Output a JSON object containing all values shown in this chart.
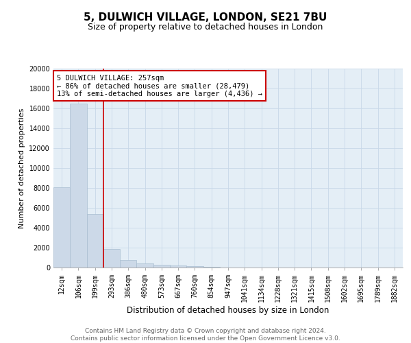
{
  "title": "5, DULWICH VILLAGE, LONDON, SE21 7BU",
  "subtitle": "Size of property relative to detached houses in London",
  "xlabel": "Distribution of detached houses by size in London",
  "ylabel": "Number of detached properties",
  "categories": [
    "12sqm",
    "106sqm",
    "199sqm",
    "293sqm",
    "386sqm",
    "480sqm",
    "573sqm",
    "667sqm",
    "760sqm",
    "854sqm",
    "947sqm",
    "1041sqm",
    "1134sqm",
    "1228sqm",
    "1321sqm",
    "1415sqm",
    "1508sqm",
    "1602sqm",
    "1695sqm",
    "1789sqm",
    "1882sqm"
  ],
  "values": [
    8100,
    16500,
    5400,
    1850,
    750,
    380,
    250,
    200,
    130,
    80,
    0,
    0,
    0,
    0,
    0,
    0,
    0,
    0,
    0,
    0,
    0
  ],
  "bar_color": "#ccd9e8",
  "bar_edge_color": "#a8bdd1",
  "vline_x": 2.5,
  "vline_color": "#cc0000",
  "annotation_text": "5 DULWICH VILLAGE: 257sqm\n← 86% of detached houses are smaller (28,479)\n13% of semi-detached houses are larger (4,436) →",
  "annotation_box_color": "#cc0000",
  "ylim": [
    0,
    20000
  ],
  "yticks": [
    0,
    2000,
    4000,
    6000,
    8000,
    10000,
    12000,
    14000,
    16000,
    18000,
    20000
  ],
  "grid_color": "#c8d8e8",
  "background_color": "#e4eef6",
  "footnote": "Contains HM Land Registry data © Crown copyright and database right 2024.\nContains public sector information licensed under the Open Government Licence v3.0.",
  "title_fontsize": 11,
  "subtitle_fontsize": 9,
  "xlabel_fontsize": 8.5,
  "ylabel_fontsize": 8,
  "tick_fontsize": 7,
  "annotation_fontsize": 7.5,
  "footnote_fontsize": 6.5
}
